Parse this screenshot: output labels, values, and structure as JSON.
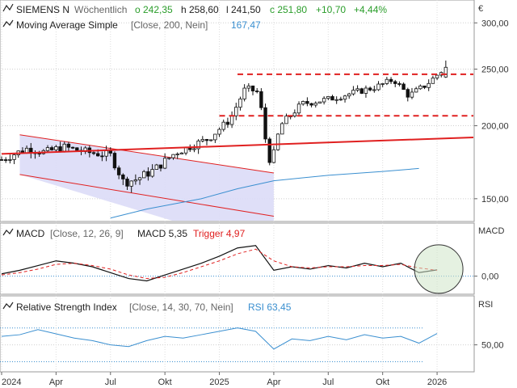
{
  "header": {
    "symbol": "SIEMENS N",
    "interval": "Wöchentlich",
    "open": "o 242,35",
    "high": "h 258,60",
    "low": "l 241,50",
    "close": "c 251,80",
    "change_abs": "+10,70",
    "change_pct": "+4,44%",
    "currency": "€",
    "colors": {
      "up": "#2a9d2a",
      "text": "#222222"
    }
  },
  "ma_legend": {
    "name": "Moving Average Simple",
    "params": "[Close, 200, Nein]",
    "value": "167,47",
    "color": "#3a8fd0"
  },
  "macd_legend": {
    "name": "MACD",
    "params": "[Close, 12, 26, 9]",
    "macd_label": "MACD 5,35",
    "trigger_label": "Trigger 4,97",
    "axis_label": "MACD",
    "trigger_color": "#e02020"
  },
  "rsi_legend": {
    "name": "Relative Strength Index",
    "params": "[Close, 14, 30, 70, Nein]",
    "value_label": "RSI 63,45",
    "axis_label": "RSI",
    "color": "#3a8fd0"
  },
  "chart_data": [
    {
      "type": "candlestick",
      "title": "SIEMENS N Wöchentlich",
      "y_scale": "log",
      "ylim": [
        138,
        310
      ],
      "y_ticks": [
        "300,00",
        "250,00",
        "200,00",
        "150,00"
      ],
      "x_ticks": [
        "2024",
        "Apr",
        "Jul",
        "Okt",
        "2025",
        "Apr",
        "Jul",
        "Okt",
        "2026"
      ],
      "x_range": [
        "2024-01",
        "2026-03"
      ],
      "series": [
        {
          "name": "Moving Average Simple",
          "values": [
            [
              "2024-07",
              139.0
            ],
            [
              "2024-09",
              144.0
            ],
            [
              "2024-12",
              150.0
            ],
            [
              "2025-02",
              156.0
            ],
            [
              "2025-04",
              161.0
            ],
            [
              "2025-07",
              164.5
            ],
            [
              "2025-10",
              167.0
            ],
            [
              "2025-12",
              169.0
            ]
          ]
        }
      ],
      "annotations": {
        "support_resistance": [
          {
            "y": 245.0,
            "from": "2025-02",
            "to": "2026-03",
            "style": "dashed",
            "color": "#e02020"
          },
          {
            "y": 208.0,
            "from": "2025-01",
            "to": "2026-03",
            "style": "dashed",
            "color": "#e02020"
          }
        ],
        "trendline": {
          "from": [
            "2024-01",
            179.0
          ],
          "to": [
            "2026-03",
            191.0
          ],
          "color": "#e02020"
        },
        "channel": {
          "upper": [
            [
              "2024-02",
              193.0
            ],
            [
              "2025-04",
              166.0
            ]
          ],
          "lower": [
            [
              "2024-02",
              165.0
            ],
            [
              "2025-04",
              140.0
            ]
          ],
          "fill": "#dcdcf7"
        }
      }
    },
    {
      "type": "line",
      "title": "MACD",
      "ylim": [
        -14,
        30
      ],
      "y_ticks": [
        "0,00"
      ],
      "series": [
        {
          "name": "MACD",
          "values": [
            [
              "2024-01",
              2
            ],
            [
              "2024-02",
              5
            ],
            [
              "2024-03",
              9
            ],
            [
              "2024-04",
              13
            ],
            [
              "2024-05",
              11
            ],
            [
              "2024-06",
              8
            ],
            [
              "2024-07",
              3
            ],
            [
              "2024-08",
              -2
            ],
            [
              "2024-09",
              -4
            ],
            [
              "2024-10",
              1
            ],
            [
              "2024-11",
              6
            ],
            [
              "2024-12",
              11
            ],
            [
              "2025-01",
              17
            ],
            [
              "2025-02",
              24
            ],
            [
              "2025-03",
              26
            ],
            [
              "2025-04",
              5
            ],
            [
              "2025-05",
              8
            ],
            [
              "2025-06",
              6
            ],
            [
              "2025-07",
              9
            ],
            [
              "2025-08",
              7
            ],
            [
              "2025-09",
              11
            ],
            [
              "2025-10",
              8
            ],
            [
              "2025-11",
              11
            ],
            [
              "2025-12",
              3
            ],
            [
              "2026-01",
              5.35
            ]
          ]
        },
        {
          "name": "Trigger",
          "values": [
            [
              "2024-01",
              1
            ],
            [
              "2024-02",
              3
            ],
            [
              "2024-03",
              6
            ],
            [
              "2024-04",
              10
            ],
            [
              "2024-05",
              11
            ],
            [
              "2024-06",
              9
            ],
            [
              "2024-07",
              6
            ],
            [
              "2024-08",
              1
            ],
            [
              "2024-09",
              -2
            ],
            [
              "2024-10",
              -1
            ],
            [
              "2024-11",
              3
            ],
            [
              "2024-12",
              8
            ],
            [
              "2025-01",
              13
            ],
            [
              "2025-02",
              19
            ],
            [
              "2025-03",
              23
            ],
            [
              "2025-04",
              13
            ],
            [
              "2025-05",
              8
            ],
            [
              "2025-06",
              7
            ],
            [
              "2025-07",
              8
            ],
            [
              "2025-08",
              8
            ],
            [
              "2025-09",
              9
            ],
            [
              "2025-10",
              9
            ],
            [
              "2025-11",
              10
            ],
            [
              "2025-12",
              7
            ],
            [
              "2026-01",
              4.97
            ]
          ]
        }
      ]
    },
    {
      "type": "line",
      "title": "Relative Strength Index",
      "ylim": [
        20,
        85
      ],
      "y_ticks": [
        "50,00"
      ],
      "reference_lines": [
        70,
        30
      ],
      "series": [
        {
          "name": "RSI",
          "values": [
            [
              "2024-01",
              60
            ],
            [
              "2024-02",
              62
            ],
            [
              "2024-03",
              68
            ],
            [
              "2024-04",
              63
            ],
            [
              "2024-05",
              58
            ],
            [
              "2024-06",
              55
            ],
            [
              "2024-07",
              50
            ],
            [
              "2024-08",
              48
            ],
            [
              "2024-09",
              55
            ],
            [
              "2024-10",
              60
            ],
            [
              "2024-11",
              58
            ],
            [
              "2024-12",
              62
            ],
            [
              "2025-01",
              66
            ],
            [
              "2025-02",
              70
            ],
            [
              "2025-03",
              66
            ],
            [
              "2025-04",
              45
            ],
            [
              "2025-05",
              57
            ],
            [
              "2025-06",
              55
            ],
            [
              "2025-07",
              60
            ],
            [
              "2025-08",
              56
            ],
            [
              "2025-09",
              62
            ],
            [
              "2025-10",
              58
            ],
            [
              "2025-11",
              60
            ],
            [
              "2025-12",
              52
            ],
            [
              "2026-01",
              63.45
            ]
          ]
        }
      ]
    }
  ]
}
